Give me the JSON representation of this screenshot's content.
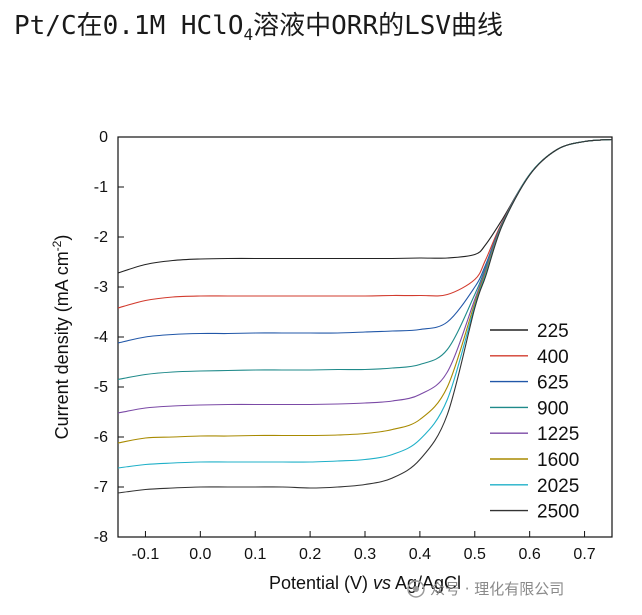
{
  "title_parts": {
    "main": "Pt/C在0.1M HClO",
    "sub": "4",
    "rest": "溶液中ORR的LSV曲线"
  },
  "chart_data": {
    "type": "line",
    "title": "Pt/C在0.1M HClO4溶液中ORR的LSV曲线",
    "xlabel": "Potential (V) vs Ag/AgCl",
    "xlabel_parts": {
      "a": "Potential (V) ",
      "b": "vs",
      "c": " Ag/AgCl"
    },
    "ylabel": "Current density (mA cm-2)",
    "ylabel_parts": {
      "a": "Current density (mA cm",
      "sup": "-2",
      "c": ")"
    },
    "xlim": [
      -0.15,
      0.75
    ],
    "ylim": [
      -8,
      0
    ],
    "xticks": [
      -0.1,
      0.0,
      0.1,
      0.2,
      0.3,
      0.4,
      0.5,
      0.6,
      0.7
    ],
    "xtick_labels": [
      "-0.1",
      "0.0",
      "0.1",
      "0.2",
      "0.3",
      "0.4",
      "0.5",
      "0.6",
      "0.7"
    ],
    "yticks": [
      0,
      -1,
      -2,
      -3,
      -4,
      -5,
      -6,
      -7,
      -8
    ],
    "ytick_labels": [
      "0",
      "-1",
      "-2",
      "-3",
      "-4",
      "-5",
      "-6",
      "-7",
      "-8"
    ],
    "legend_position": "lower-right",
    "grid": false,
    "x": [
      -0.15,
      -0.1,
      -0.05,
      0.0,
      0.05,
      0.1,
      0.15,
      0.2,
      0.25,
      0.3,
      0.35,
      0.4,
      0.45,
      0.5,
      0.52,
      0.55,
      0.6,
      0.65,
      0.7,
      0.75
    ],
    "series": [
      {
        "name": "225",
        "color": "#222222",
        "values": [
          -2.72,
          -2.55,
          -2.47,
          -2.44,
          -2.43,
          -2.43,
          -2.43,
          -2.43,
          -2.43,
          -2.43,
          -2.43,
          -2.42,
          -2.42,
          -2.35,
          -2.15,
          -1.65,
          -0.75,
          -0.25,
          -0.09,
          -0.05
        ]
      },
      {
        "name": "400",
        "color": "#d23b2e",
        "values": [
          -3.42,
          -3.27,
          -3.2,
          -3.18,
          -3.18,
          -3.18,
          -3.18,
          -3.18,
          -3.18,
          -3.18,
          -3.17,
          -3.17,
          -3.15,
          -2.85,
          -2.45,
          -1.7,
          -0.75,
          -0.25,
          -0.09,
          -0.05
        ]
      },
      {
        "name": "625",
        "color": "#2157a8",
        "values": [
          -4.12,
          -4.0,
          -3.95,
          -3.93,
          -3.93,
          -3.92,
          -3.92,
          -3.92,
          -3.92,
          -3.9,
          -3.88,
          -3.85,
          -3.7,
          -3.0,
          -2.55,
          -1.72,
          -0.75,
          -0.25,
          -0.09,
          -0.05
        ]
      },
      {
        "name": "900",
        "color": "#1f8a8a",
        "values": [
          -4.85,
          -4.75,
          -4.7,
          -4.68,
          -4.67,
          -4.66,
          -4.66,
          -4.66,
          -4.65,
          -4.65,
          -4.62,
          -4.55,
          -4.25,
          -3.15,
          -2.6,
          -1.73,
          -0.75,
          -0.25,
          -0.09,
          -0.05
        ]
      },
      {
        "name": "1225",
        "color": "#7b4aa6",
        "values": [
          -5.52,
          -5.42,
          -5.38,
          -5.36,
          -5.35,
          -5.35,
          -5.35,
          -5.35,
          -5.34,
          -5.32,
          -5.28,
          -5.15,
          -4.7,
          -3.25,
          -2.65,
          -1.74,
          -0.75,
          -0.25,
          -0.09,
          -0.05
        ]
      },
      {
        "name": "1600",
        "color": "#a88a00",
        "values": [
          -6.12,
          -6.02,
          -6.0,
          -5.98,
          -5.98,
          -5.97,
          -5.97,
          -5.97,
          -5.96,
          -5.93,
          -5.85,
          -5.65,
          -5.0,
          -3.32,
          -2.7,
          -1.75,
          -0.75,
          -0.25,
          -0.09,
          -0.05
        ]
      },
      {
        "name": "2025",
        "color": "#1fb0c8",
        "values": [
          -6.62,
          -6.55,
          -6.52,
          -6.5,
          -6.5,
          -6.5,
          -6.5,
          -6.5,
          -6.48,
          -6.45,
          -6.35,
          -6.05,
          -5.25,
          -3.38,
          -2.74,
          -1.76,
          -0.75,
          -0.25,
          -0.09,
          -0.05
        ]
      },
      {
        "name": "2500",
        "color": "#333333",
        "values": [
          -7.12,
          -7.05,
          -7.02,
          -7.0,
          -7.0,
          -7.0,
          -7.0,
          -7.02,
          -7.0,
          -6.95,
          -6.82,
          -6.45,
          -5.55,
          -3.42,
          -2.78,
          -1.77,
          -0.76,
          -0.25,
          -0.09,
          -0.05
        ]
      }
    ]
  },
  "watermark": {
    "text": "众号 · 理化有限公司"
  }
}
